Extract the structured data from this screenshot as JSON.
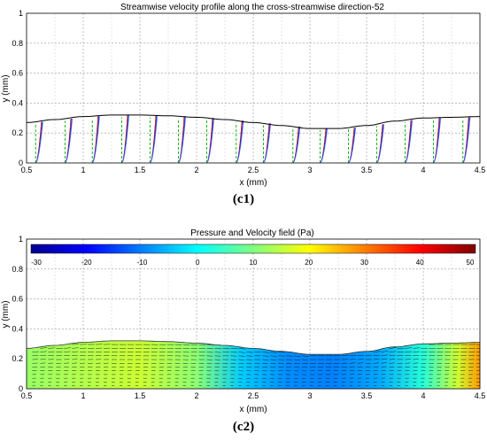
{
  "captions": {
    "c1": "(c1)",
    "c2": "(c2)"
  },
  "chart_data": [
    {
      "type": "line",
      "title": "Streamwise velocity profile along the cross-streamwise direction-52",
      "xlabel": "x (mm)",
      "ylabel": "y (mm)",
      "xlim": [
        0.5,
        4.5
      ],
      "ylim": [
        0,
        1
      ],
      "xticks": [
        "0.5",
        "1",
        "1.5",
        "2",
        "2.5",
        "3",
        "3.5",
        "4",
        "4.5"
      ],
      "yticks": [
        "0",
        "0.2",
        "0.4",
        "0.6",
        "0.8",
        "1"
      ],
      "grid": true,
      "surface": {
        "x": [
          0.5,
          0.75,
          1.0,
          1.25,
          1.5,
          1.75,
          2.0,
          2.25,
          2.5,
          2.75,
          3.0,
          3.25,
          3.5,
          3.75,
          4.0,
          4.25,
          4.5
        ],
        "y": [
          0.27,
          0.29,
          0.31,
          0.32,
          0.32,
          0.315,
          0.305,
          0.29,
          0.27,
          0.25,
          0.23,
          0.23,
          0.25,
          0.28,
          0.3,
          0.305,
          0.31
        ]
      },
      "profile_x": [
        0.58,
        0.84,
        1.08,
        1.34,
        1.59,
        1.84,
        2.09,
        2.35,
        2.59,
        2.85,
        3.09,
        3.34,
        3.59,
        3.84,
        4.09,
        4.35
      ]
    },
    {
      "type": "heatmap",
      "title": "Pressure and Velocity field (Pa)",
      "xlabel": "x (mm)",
      "ylabel": "y (mm)",
      "xlim": [
        0.5,
        4.5
      ],
      "ylim": [
        0,
        1
      ],
      "xticks": [
        "0.5",
        "1",
        "1.5",
        "2",
        "2.5",
        "3",
        "3.5",
        "4",
        "4.5"
      ],
      "yticks": [
        "0",
        "0.2",
        "0.4",
        "0.6",
        "0.8",
        "1"
      ],
      "grid": true,
      "colorbar": {
        "range": [
          -30,
          50
        ],
        "ticks": [
          "-30",
          "-20",
          "-10",
          "0",
          "10",
          "20",
          "30",
          "40",
          "50"
        ],
        "position": "top"
      },
      "pressure_x": [
        0.5,
        1.0,
        1.5,
        2.0,
        2.4,
        2.8,
        3.2,
        3.6,
        4.0,
        4.3,
        4.5
      ],
      "pressure_pa": [
        12,
        14,
        16,
        11,
        -4,
        -9,
        -10,
        -7,
        3,
        16,
        28
      ]
    }
  ]
}
